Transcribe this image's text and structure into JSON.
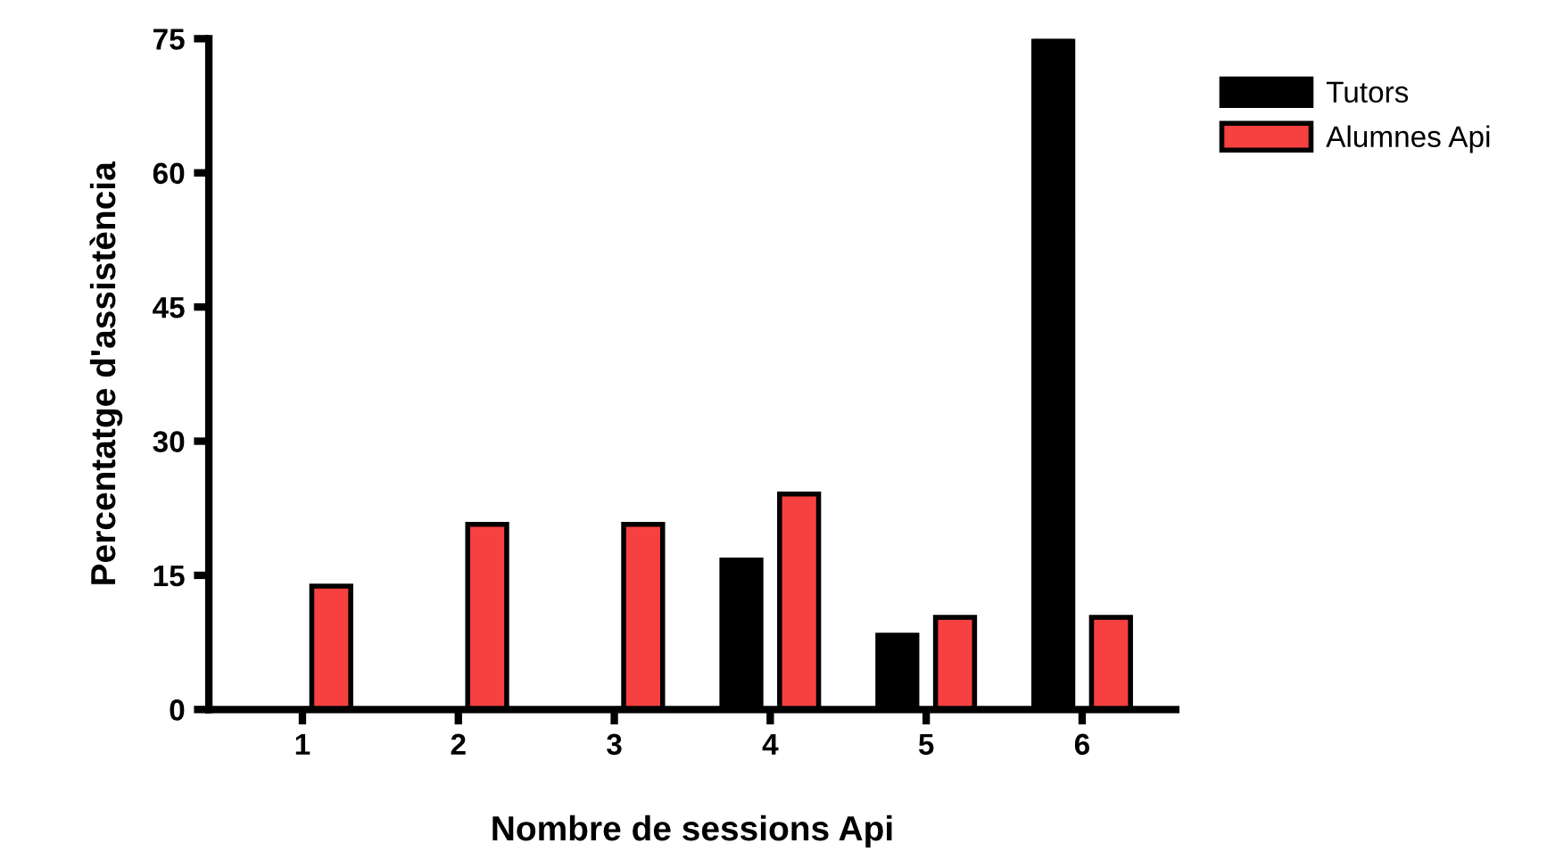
{
  "chart_data": {
    "type": "bar",
    "xlabel": "Nombre de sessions Api",
    "ylabel": "Percentatge d'assistència",
    "categories": [
      "1",
      "2",
      "3",
      "4",
      "5",
      "6"
    ],
    "series": [
      {
        "name": "Tutors",
        "color": "#000000",
        "values": [
          0,
          0,
          0,
          16.7,
          8.3,
          75
        ]
      },
      {
        "name": "Alumnes Api",
        "color": "#f74040",
        "values": [
          13.8,
          20.7,
          20.7,
          24.1,
          10.3,
          10.3
        ]
      }
    ],
    "ylim": [
      0,
      75
    ],
    "yticks": [
      0,
      15,
      30,
      45,
      60,
      75
    ],
    "grid": false,
    "legend": "top right"
  }
}
